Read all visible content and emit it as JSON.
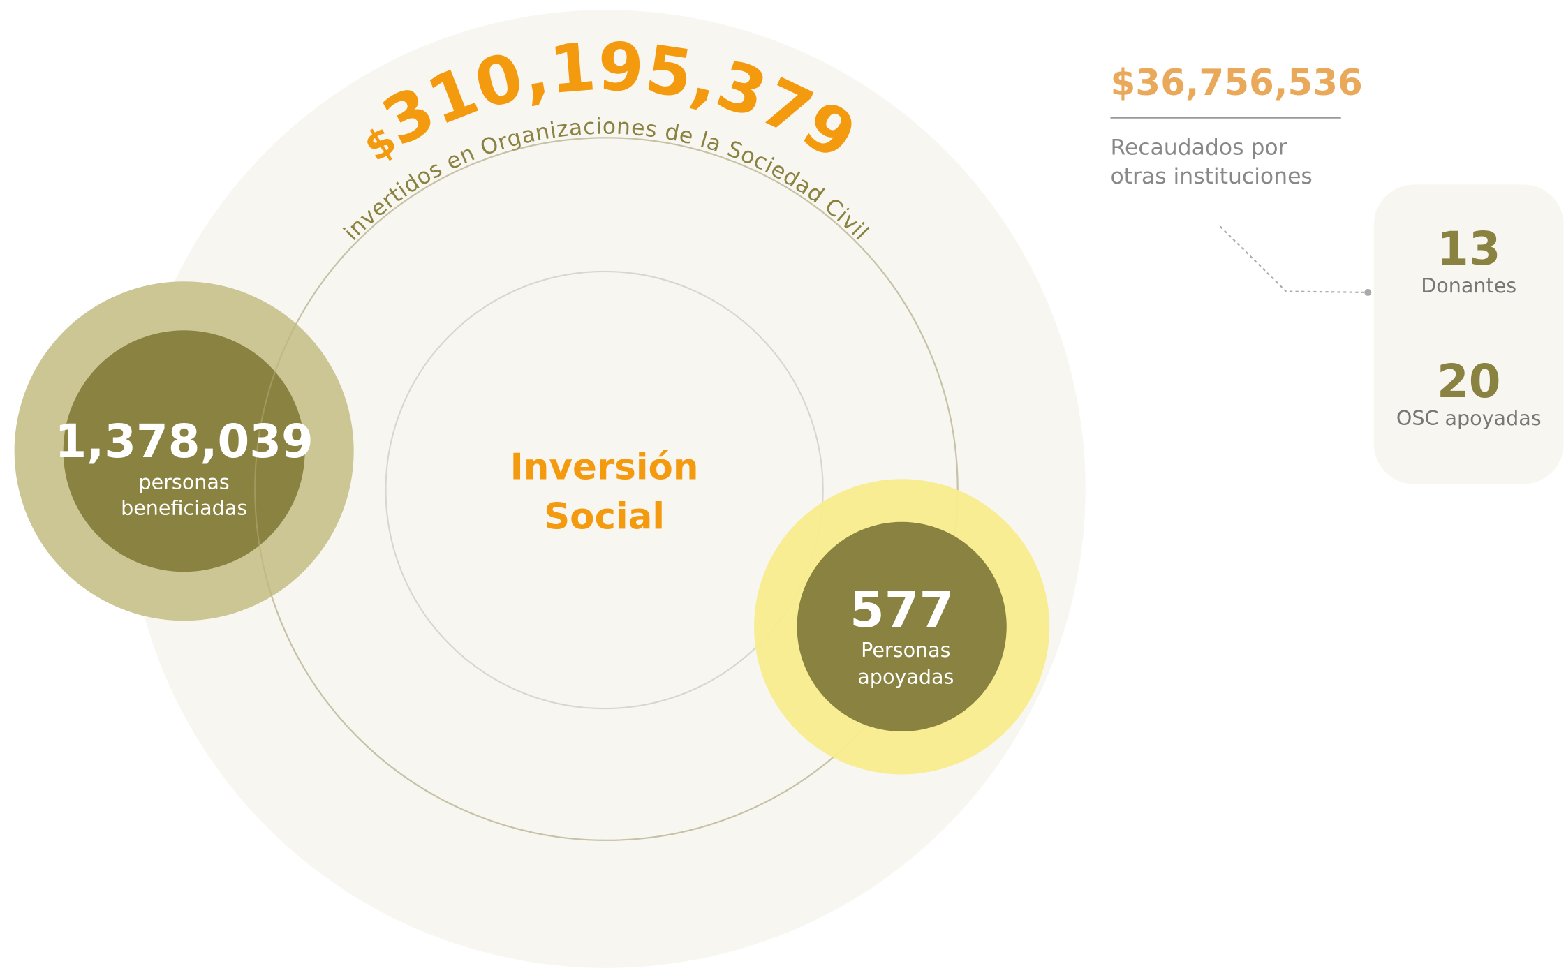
{
  "main": {
    "currency": "$",
    "amount": "310,195,379",
    "caption": "invertidos en Organizaciones de la Sociedad Civil"
  },
  "center": [
    "Inversión",
    "Social"
  ],
  "left": {
    "value": "1,378,039",
    "label": [
      "personas",
      "beneficiadas"
    ]
  },
  "right": {
    "value": "577",
    "label": [
      "Personas",
      "apoyadas"
    ]
  },
  "side": {
    "amount": "$36,756,536",
    "label": [
      "Recaudados por",
      "otras instituciones"
    ]
  },
  "card": [
    {
      "value": "13",
      "label": "Donantes"
    },
    {
      "value": "20",
      "label": "OSC apoyadas"
    }
  ]
}
